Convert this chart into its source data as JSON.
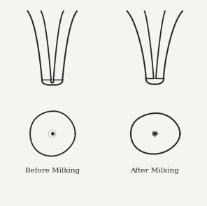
{
  "bg_color": "#f5f4f0",
  "line_color": "#2a2a2a",
  "line_width": 1.5,
  "label_before": "Before Milking",
  "label_after": "After Milking",
  "label_fontsize": 7.5
}
